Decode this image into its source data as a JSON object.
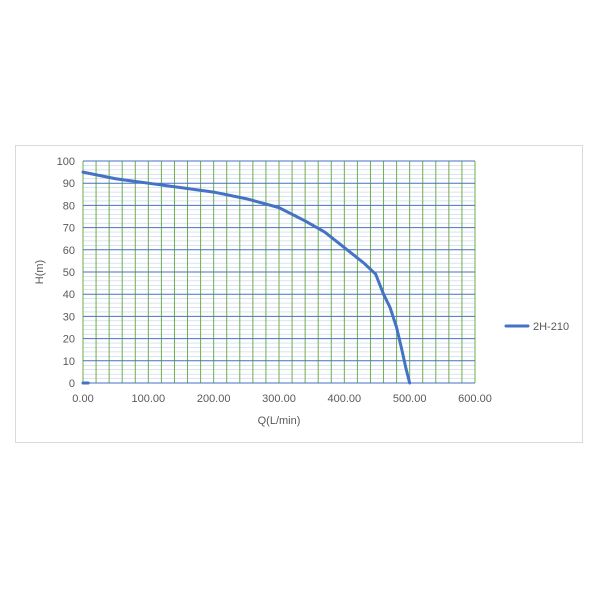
{
  "chart_data": {
    "type": "line",
    "xlabel": "Q(L/min)",
    "ylabel": "H(m)",
    "xlim": [
      0,
      600
    ],
    "ylim": [
      0,
      100
    ],
    "x_ticks": [
      "0.00",
      "100.00",
      "200.00",
      "300.00",
      "400.00",
      "500.00",
      "600.00"
    ],
    "y_ticks": [
      "0",
      "10",
      "20",
      "30",
      "40",
      "50",
      "60",
      "70",
      "80",
      "90",
      "100"
    ],
    "grid": {
      "horizontal_major_color": "#4472c4",
      "horizontal_minor_color": "#b4c7e7",
      "vertical_color": "#70ad47",
      "vertical_step": 20
    },
    "legend_position": "right",
    "series": [
      {
        "name": "2H-210",
        "color": "#4472c4",
        "points": [
          [
            0,
            95
          ],
          [
            50,
            92
          ],
          [
            100,
            90
          ],
          [
            150,
            88
          ],
          [
            200,
            86
          ],
          [
            250,
            83
          ],
          [
            300,
            79
          ],
          [
            340,
            73
          ],
          [
            370,
            68
          ],
          [
            400,
            61
          ],
          [
            430,
            54
          ],
          [
            448,
            49
          ],
          [
            460,
            40
          ],
          [
            470,
            34
          ],
          [
            480,
            25
          ],
          [
            488,
            15
          ],
          [
            494,
            7
          ],
          [
            500,
            0
          ]
        ]
      },
      {
        "name": "",
        "color": "#4472c4",
        "points": [
          [
            0,
            0
          ],
          [
            8,
            0
          ]
        ]
      }
    ]
  }
}
